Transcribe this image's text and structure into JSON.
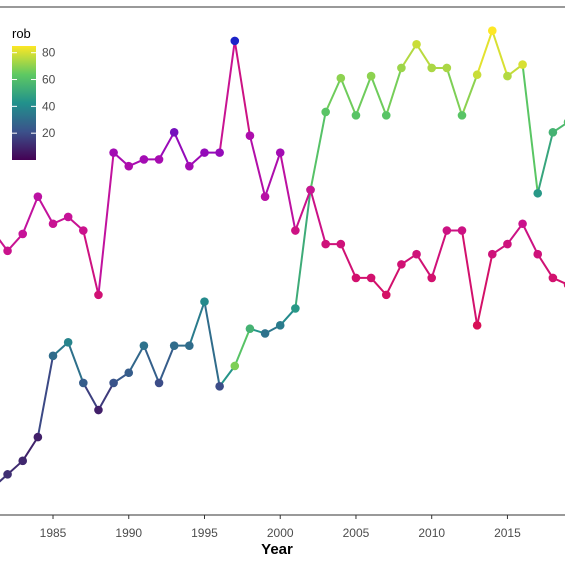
{
  "chart_data": {
    "type": "line",
    "xlabel": "Year",
    "ylabel": "",
    "xlim": [
      1981.5,
      2018.8
    ],
    "ylim": [
      18,
      93
    ],
    "x_ticks": [
      1985,
      1990,
      1995,
      2000,
      2005,
      2010,
      2015
    ],
    "color_variable": "rob",
    "colorbar": {
      "title": "rob",
      "ticks": [
        20,
        40,
        60,
        80
      ],
      "range": [
        0,
        85
      ],
      "placement": "top-left",
      "palette": "viridis"
    },
    "series": [
      {
        "palette": "viridis",
        "x": [
          1981,
          1982,
          1983,
          1984,
          1985,
          1986,
          1987,
          1988,
          1989,
          1990,
          1991,
          1992,
          1993,
          1994,
          1995,
          1996,
          1997,
          1998,
          1999,
          2000,
          2001,
          2002,
          2003,
          2004,
          2005,
          2006,
          2007,
          2008,
          2009,
          2010,
          2011,
          2012,
          2013,
          2014,
          2015,
          2016,
          2017,
          2018,
          2019
        ],
        "y": [
          22,
          24,
          26,
          29.5,
          41.5,
          43.5,
          37.5,
          33.5,
          37.5,
          39,
          43,
          37.5,
          43,
          43,
          49.5,
          37,
          40,
          45.5,
          44.8,
          46,
          48.5,
          66,
          77.5,
          82.5,
          77,
          82.8,
          77,
          84,
          87.5,
          84,
          84,
          77,
          83,
          89.5,
          82.8,
          84.5,
          65.5,
          74.5,
          76
        ],
        "colors": [
          15,
          12,
          10,
          8,
          30,
          38,
          25,
          8,
          22,
          25,
          32,
          20,
          30,
          30,
          40,
          20,
          68,
          55,
          32,
          35,
          45,
          60,
          62,
          70,
          62,
          70,
          62,
          72,
          78,
          74,
          74,
          62,
          78,
          85,
          75,
          80,
          45,
          55,
          60
        ]
      },
      {
        "palette": "magenta-red",
        "x": [
          1981,
          1982,
          1983,
          1984,
          1985,
          1986,
          1987,
          1988,
          1989,
          1990,
          1991,
          1992,
          1993,
          1994,
          1995,
          1996,
          1997,
          1998,
          1999,
          2000,
          2001,
          2002,
          2003,
          2004,
          2005,
          2006,
          2007,
          2008,
          2009,
          2010,
          2011,
          2012,
          2013,
          2014,
          2015,
          2016,
          2017,
          2018,
          2019
        ],
        "y": [
          60,
          57,
          59.5,
          65,
          61,
          62,
          60,
          50.5,
          71.5,
          69.5,
          70.5,
          70.5,
          74.5,
          69.5,
          71.5,
          71.5,
          88,
          74,
          65,
          71.5,
          60,
          66,
          58,
          58,
          53,
          53,
          50.5,
          55,
          56.5,
          53,
          60,
          60,
          46,
          56.5,
          58,
          61,
          56.5,
          53,
          52
        ],
        "colors": [
          40,
          38,
          42,
          48,
          40,
          42,
          38,
          30,
          60,
          55,
          60,
          58,
          70,
          60,
          65,
          65,
          15,
          55,
          50,
          60,
          35,
          40,
          32,
          32,
          28,
          28,
          25,
          30,
          32,
          28,
          35,
          35,
          20,
          32,
          33,
          38,
          32,
          28,
          28
        ]
      }
    ]
  }
}
